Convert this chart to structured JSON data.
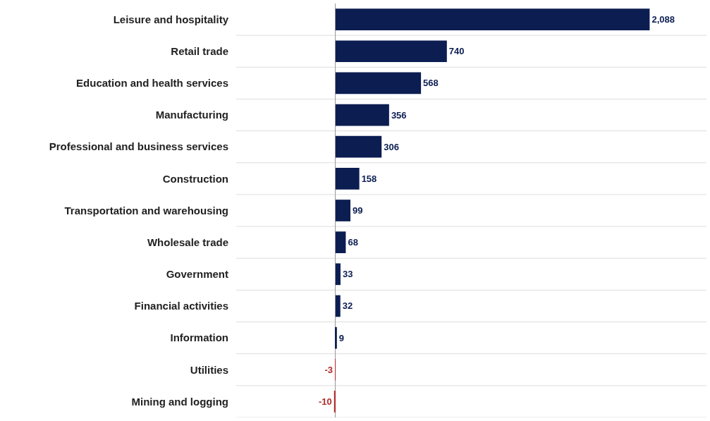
{
  "chart_data": {
    "type": "bar",
    "orientation": "horizontal",
    "categories": [
      "Leisure and hospitality",
      "Retail trade",
      "Education and health services",
      "Manufacturing",
      "Professional and business services",
      "Construction",
      "Transportation and warehousing",
      "Wholesale trade",
      "Government",
      "Financial activities",
      "Information",
      "Utilities",
      "Mining and logging"
    ],
    "values": [
      2088,
      740,
      568,
      356,
      306,
      158,
      99,
      68,
      33,
      32,
      9,
      -3,
      -10
    ],
    "value_labels": [
      "2,088",
      "740",
      "568",
      "356",
      "306",
      "158",
      "99",
      "68",
      "33",
      "32",
      "9",
      "-3",
      "-10"
    ],
    "colors": [
      "#0b1d51",
      "#0b1d51",
      "#0b1d51",
      "#0b1d51",
      "#0b1d51",
      "#0b1d51",
      "#0b1d51",
      "#0b1d51",
      "#0b1d51",
      "#0b1d51",
      "#0b1d51",
      "#b02a2a",
      "#b02a2a"
    ],
    "grid": "y"
  }
}
